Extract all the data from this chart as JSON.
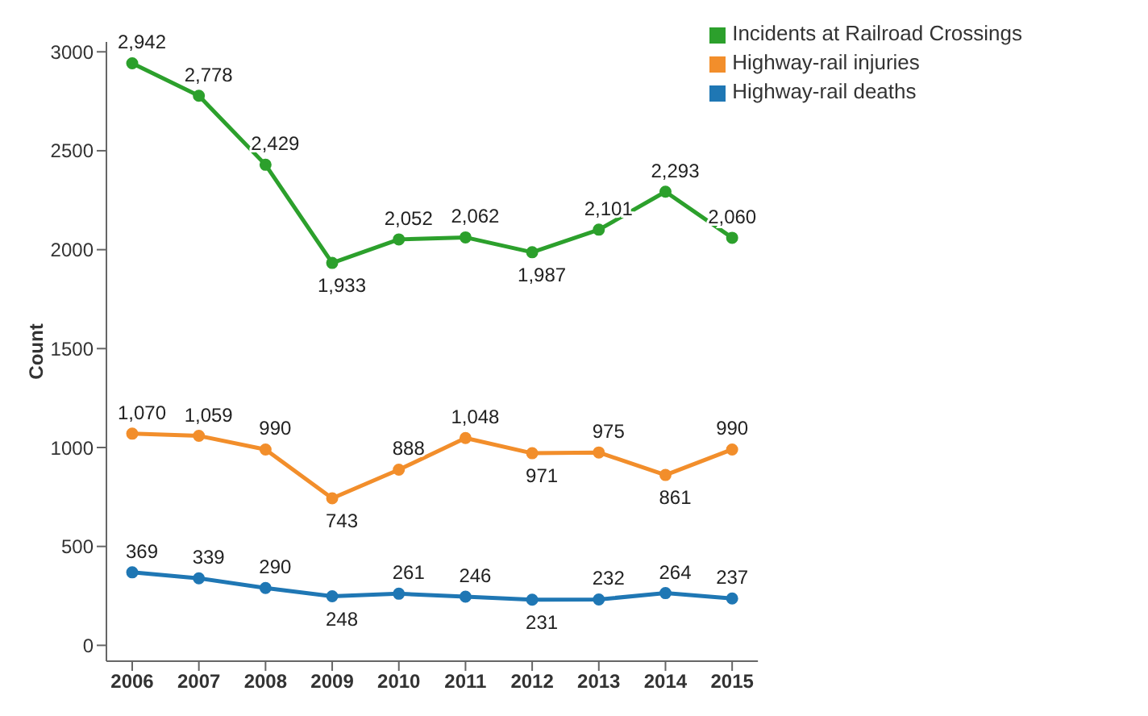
{
  "chart_data": {
    "type": "line",
    "ylabel": "Count",
    "categories": [
      "2006",
      "2007",
      "2008",
      "2009",
      "2010",
      "2011",
      "2012",
      "2013",
      "2014",
      "2015"
    ],
    "series": [
      {
        "name": "Incidents at Railroad Crossings",
        "color": "#2ca02c",
        "values": [
          2942,
          2778,
          2429,
          1933,
          2052,
          2062,
          1987,
          2101,
          2293,
          2060
        ],
        "value_labels": [
          "2,942",
          "2,778",
          "2,429",
          "1,933",
          "2,052",
          "2,062",
          "1,987",
          "2,101",
          "2,293",
          "2,060"
        ]
      },
      {
        "name": "Highway-rail injuries",
        "color": "#f28e2b",
        "values": [
          1070,
          1059,
          990,
          743,
          888,
          1048,
          971,
          975,
          861,
          990
        ],
        "value_labels": [
          "1,070",
          "1,059",
          "990",
          "743",
          "888",
          "1,048",
          "971",
          "975",
          "861",
          "990"
        ]
      },
      {
        "name": "Highway-rail deaths",
        "color": "#1f77b4",
        "values": [
          369,
          339,
          290,
          248,
          261,
          246,
          231,
          232,
          264,
          237
        ],
        "value_labels": [
          "369",
          "339",
          "290",
          "248",
          "261",
          "246",
          "231",
          "232",
          "264",
          "237"
        ]
      }
    ],
    "ylim": [
      -80,
      3050
    ],
    "yticks": [
      0,
      500,
      1000,
      1500,
      2000,
      2500,
      3000
    ],
    "legend": "top right",
    "marker": "circle",
    "line_style": "solid"
  }
}
